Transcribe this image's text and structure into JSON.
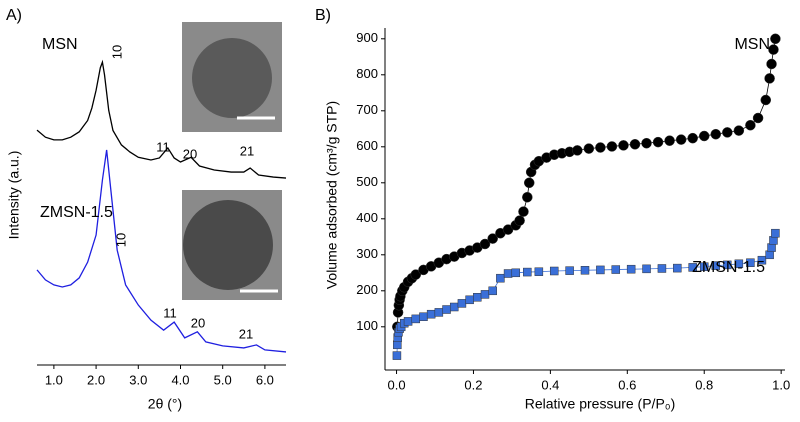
{
  "chart_data": [
    {
      "type": "line",
      "panel_label": "A)",
      "x_label": "2θ (°)",
      "y_label": "Intensity (a.u.)",
      "xlim": [
        0.6,
        6.5
      ],
      "ylim": [
        0,
        100
      ],
      "xticks": [
        {
          "value": 1,
          "label": "1.0"
        },
        {
          "value": 2,
          "label": "2.0"
        },
        {
          "value": 3,
          "label": "3.0"
        },
        {
          "value": 4,
          "label": "4.0"
        },
        {
          "value": 5,
          "label": "5.0"
        },
        {
          "value": 6,
          "label": "6.0"
        }
      ],
      "series": [
        {
          "name": "MSN",
          "color": "#000000",
          "peak_labels": [
            "10",
            "11",
            "20",
            "21"
          ],
          "x": [
            0.6,
            0.8,
            1.0,
            1.2,
            1.4,
            1.6,
            1.8,
            1.9,
            2.0,
            2.1,
            2.15,
            2.2,
            2.3,
            2.4,
            2.6,
            2.8,
            3.0,
            3.3,
            3.5,
            3.7,
            3.85,
            4.0,
            4.25,
            4.45,
            4.8,
            5.2,
            5.5,
            5.65,
            5.85,
            6.2,
            6.5
          ],
          "values": [
            70.1,
            68,
            67.2,
            67.2,
            68,
            69.6,
            73,
            76.7,
            82,
            88.7,
            90.4,
            86.6,
            76,
            70,
            65.7,
            63.6,
            62,
            61.2,
            61.8,
            64.8,
            61.8,
            60.6,
            62,
            59.4,
            58.2,
            57.6,
            57.6,
            58.8,
            56.7,
            56.1,
            55.8
          ]
        },
        {
          "name": "ZMSN-1.5",
          "color": "#1f1fe0",
          "peak_labels": [
            "10",
            "11",
            "20",
            "21"
          ],
          "x": [
            0.6,
            0.8,
            1.0,
            1.2,
            1.4,
            1.6,
            1.8,
            2.0,
            2.15,
            2.25,
            2.35,
            2.5,
            2.7,
            3.0,
            3.3,
            3.6,
            3.85,
            4.1,
            4.4,
            4.6,
            5.0,
            5.5,
            5.8,
            6.0,
            6.5
          ],
          "values": [
            28.4,
            25.4,
            23.9,
            23.3,
            23.9,
            26,
            30.7,
            38.8,
            55.2,
            64.2,
            52.2,
            34.3,
            23.9,
            17.9,
            13.4,
            10.4,
            12.8,
            8.1,
            9.9,
            6.9,
            5.7,
            5.1,
            6,
            4.5,
            3.9
          ]
        }
      ]
    },
    {
      "type": "scatter",
      "panel_label": "B)",
      "x_label": "Relative pressure (P/P₀)",
      "y_label": "Volume adsorbed (cm³/g STP)",
      "xlim": [
        -0.03,
        1.01
      ],
      "ylim": [
        -20,
        930
      ],
      "xticks": [
        {
          "value": 0,
          "label": "0.0"
        },
        {
          "value": 0.2,
          "label": "0.2"
        },
        {
          "value": 0.4,
          "label": "0.4"
        },
        {
          "value": 0.6,
          "label": "0.6"
        },
        {
          "value": 0.8,
          "label": "0.8"
        },
        {
          "value": 1,
          "label": "1.0"
        }
      ],
      "yticks": [
        100,
        200,
        300,
        400,
        500,
        600,
        700,
        800,
        900
      ],
      "series": [
        {
          "name": "MSN",
          "color": "#000000",
          "marker": "circle",
          "x": [
            0.002,
            0.004,
            0.006,
            0.008,
            0.01,
            0.015,
            0.02,
            0.03,
            0.04,
            0.05,
            0.07,
            0.09,
            0.11,
            0.13,
            0.15,
            0.17,
            0.19,
            0.21,
            0.23,
            0.25,
            0.27,
            0.29,
            0.31,
            0.32,
            0.33,
            0.34,
            0.345,
            0.35,
            0.36,
            0.37,
            0.39,
            0.41,
            0.43,
            0.45,
            0.47,
            0.5,
            0.53,
            0.56,
            0.59,
            0.62,
            0.65,
            0.68,
            0.71,
            0.74,
            0.77,
            0.8,
            0.83,
            0.86,
            0.89,
            0.92,
            0.94,
            0.96,
            0.97,
            0.975,
            0.98,
            0.985
          ],
          "values": [
            100,
            140,
            160,
            175,
            185,
            200,
            210,
            225,
            235,
            245,
            258,
            268,
            278,
            288,
            295,
            305,
            312,
            320,
            330,
            345,
            360,
            370,
            382,
            395,
            420,
            460,
            500,
            530,
            550,
            560,
            570,
            578,
            582,
            586,
            590,
            595,
            598,
            601,
            604,
            607,
            610,
            613,
            617,
            620,
            624,
            630,
            635,
            640,
            645,
            660,
            680,
            730,
            790,
            830,
            870,
            900
          ]
        },
        {
          "name": "ZMSN-1.5",
          "color": "#3a6fd8",
          "marker": "square",
          "x": [
            0.001,
            0.002,
            0.003,
            0.005,
            0.008,
            0.012,
            0.02,
            0.03,
            0.05,
            0.07,
            0.09,
            0.11,
            0.13,
            0.15,
            0.17,
            0.19,
            0.21,
            0.23,
            0.25,
            0.27,
            0.29,
            0.31,
            0.34,
            0.37,
            0.41,
            0.45,
            0.49,
            0.53,
            0.57,
            0.61,
            0.65,
            0.69,
            0.73,
            0.77,
            0.8,
            0.83,
            0.86,
            0.89,
            0.92,
            0.95,
            0.97,
            0.975,
            0.98,
            0.985
          ],
          "values": [
            20,
            50,
            70,
            85,
            95,
            100,
            110,
            115,
            122,
            128,
            135,
            140,
            148,
            155,
            165,
            175,
            182,
            190,
            200,
            235,
            248,
            250,
            252,
            253,
            255,
            256,
            257,
            258,
            259,
            260,
            261,
            262,
            263,
            265,
            267,
            270,
            272,
            275,
            278,
            285,
            300,
            320,
            340,
            360
          ]
        }
      ]
    }
  ]
}
